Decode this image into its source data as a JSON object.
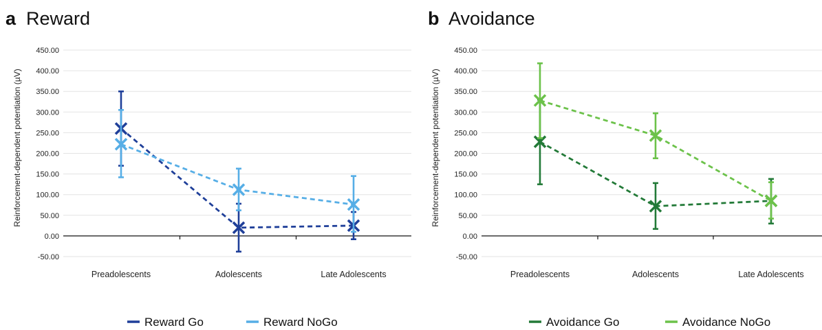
{
  "chart_data": [
    {
      "type": "line",
      "panel": "a",
      "title": "Reward",
      "ylabel": "Reinforcement-dependent potentiation (µV)",
      "xlabel": "",
      "categories": [
        "Preadolescents",
        "Adolescents",
        "Late Adolescents"
      ],
      "ylim": [
        -50,
        450
      ],
      "yticks": [
        "-50.00",
        "0.00",
        "50.00",
        "100.00",
        "150.00",
        "200.00",
        "250.00",
        "300.00",
        "350.00",
        "400.00",
        "450.00"
      ],
      "grid": true,
      "legend": "bottom",
      "series": [
        {
          "name": "Reward Go",
          "color": "#1f3f99",
          "values": [
            260,
            20,
            25
          ],
          "error_low": [
            170,
            -38,
            -8
          ],
          "error_high": [
            350,
            78,
            58
          ]
        },
        {
          "name": "Reward NoGo",
          "color": "#56aee6",
          "values": [
            222,
            112,
            76
          ],
          "error_low": [
            142,
            62,
            10
          ],
          "error_high": [
            305,
            163,
            145
          ]
        }
      ]
    },
    {
      "type": "line",
      "panel": "b",
      "title": "Avoidance",
      "ylabel": "Reinforcement-dependent potentiation (µV)",
      "xlabel": "",
      "categories": [
        "Preadolescents",
        "Adolescents",
        "Late Adolescents"
      ],
      "ylim": [
        -50,
        450
      ],
      "yticks": [
        "-50.00",
        "0.00",
        "50.00",
        "100.00",
        "150.00",
        "200.00",
        "250.00",
        "300.00",
        "350.00",
        "400.00",
        "450.00"
      ],
      "grid": true,
      "legend": "bottom",
      "series": [
        {
          "name": "Avoidance Go",
          "color": "#237a38",
          "values": [
            228,
            72,
            85
          ],
          "error_low": [
            125,
            17,
            30
          ],
          "error_high": [
            330,
            128,
            138
          ]
        },
        {
          "name": "Avoidance NoGo",
          "color": "#6cc24a",
          "values": [
            328,
            243,
            85
          ],
          "error_low": [
            237,
            188,
            42
          ],
          "error_high": [
            418,
            297,
            130
          ]
        }
      ]
    }
  ]
}
